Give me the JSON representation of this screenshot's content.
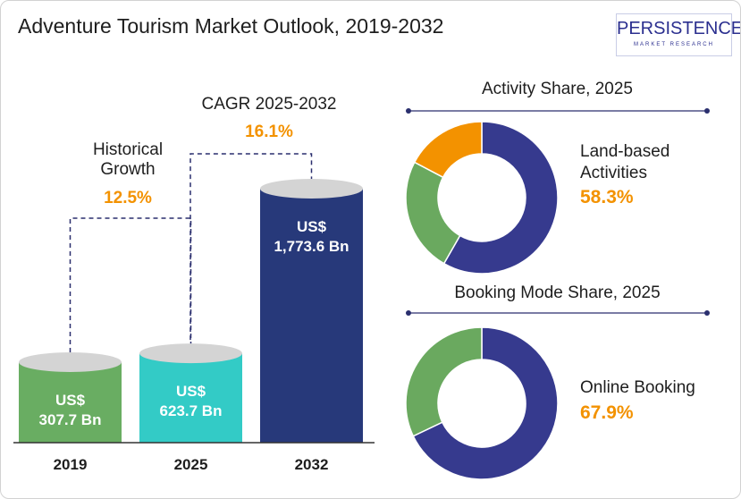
{
  "title": "Adventure Tourism Market Outlook, 2019-2032",
  "logo": {
    "word": "PERSISTENCE",
    "sub": "MARKET RESEARCH"
  },
  "annotations": {
    "historical_label": "Historical",
    "historical_label2": "Growth",
    "historical_value": "12.5%",
    "cagr_label": "CAGR 2025-2032",
    "cagr_value": "16.1%"
  },
  "colors": {
    "green": "#69ad62",
    "teal": "#33cbc6",
    "navy": "#27397a",
    "donut_navy": "#363a8e",
    "orange": "#f39200",
    "donut_green": "#6aa95f"
  },
  "chart_data": [
    {
      "type": "bar",
      "title": "Adventure Tourism Market Outlook, 2019-2032",
      "categories": [
        "2019",
        "2025",
        "2032"
      ],
      "values": [
        307.7,
        623.7,
        1773.6
      ],
      "value_labels": [
        [
          "US$",
          "307.7 Bn"
        ],
        [
          "US$",
          "623.7 Bn"
        ],
        [
          "US$",
          "1,773.6 Bn"
        ]
      ],
      "unit": "US$ Bn",
      "bar_colors": [
        "#69ad62",
        "#33cbc6",
        "#27397a"
      ]
    },
    {
      "type": "pie",
      "title": "Activity Share, 2025",
      "highlight_label": [
        "Land-based",
        "Activities"
      ],
      "highlight_value": "58.3%",
      "slices": [
        {
          "value": 58.3,
          "color": "#363a8e"
        },
        {
          "value": 24.4,
          "color": "#6aa95f"
        },
        {
          "value": 17.3,
          "color": "#f39200"
        }
      ]
    },
    {
      "type": "pie",
      "title": "Booking Mode Share, 2025",
      "highlight_label": [
        "Online Booking"
      ],
      "highlight_value": "67.9%",
      "slices": [
        {
          "value": 67.9,
          "color": "#363a8e"
        },
        {
          "value": 32.1,
          "color": "#6aa95f"
        }
      ]
    }
  ]
}
